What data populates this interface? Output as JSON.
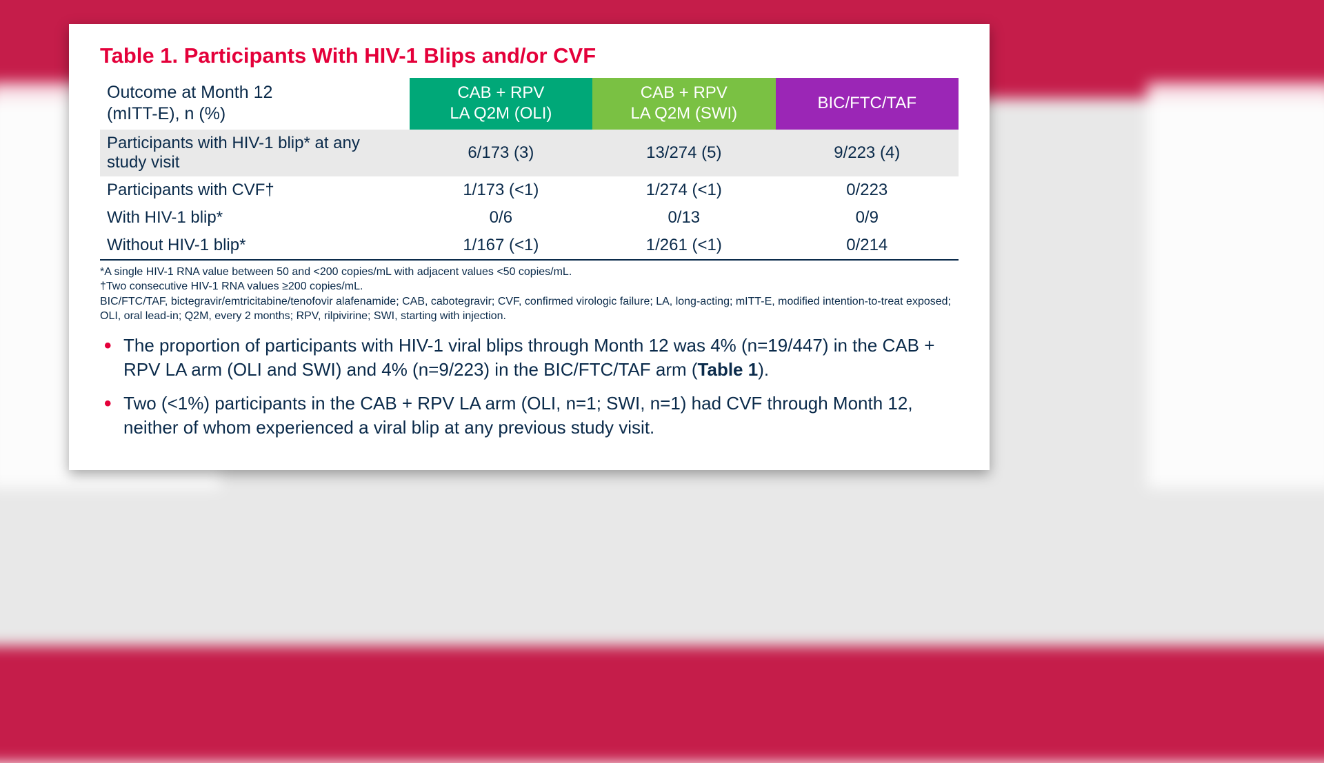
{
  "title": "Table 1. Participants With HIV-1 Blips and/or CVF",
  "colors": {
    "accent_red": "#e4003a",
    "text_navy": "#0a2a4a",
    "hdr1_bg": "#00a878",
    "hdr2_bg": "#7ac143",
    "hdr3_bg": "#9b26b6",
    "row_shade": "#e9e9e9",
    "card_bg": "#ffffff"
  },
  "table": {
    "outcome_header_l1": "Outcome at Month 12",
    "outcome_header_l2": "(mITT-E), n (%)",
    "arms": [
      {
        "l1": "CAB + RPV",
        "l2": "LA Q2M (OLI)",
        "bg": "#00a878"
      },
      {
        "l1": "CAB + RPV",
        "l2": "LA Q2M (SWI)",
        "bg": "#7ac143"
      },
      {
        "l1": "BIC/FTC/TAF",
        "l2": "",
        "bg": "#9b26b6"
      }
    ],
    "rows": [
      {
        "label": "Participants with HIV-1 blip* at any study visit",
        "indent": false,
        "shade": true,
        "cells": [
          "6/173 (3)",
          "13/274 (5)",
          "9/223 (4)"
        ]
      },
      {
        "label": "Participants with CVF†",
        "indent": false,
        "shade": false,
        "cells": [
          "1/173 (<1)",
          "1/274 (<1)",
          "0/223"
        ]
      },
      {
        "label": "With HIV-1 blip*",
        "indent": true,
        "shade": false,
        "cells": [
          "0/6",
          "0/13",
          "0/9"
        ]
      },
      {
        "label": "Without HIV-1 blip*",
        "indent": true,
        "shade": false,
        "cells": [
          "1/167 (<1)",
          "1/261 (<1)",
          "0/214"
        ]
      }
    ]
  },
  "footnotes": {
    "f1": "*A single HIV-1 RNA value between 50 and <200 copies/mL with adjacent values <50 copies/mL.",
    "f2": "†Two consecutive HIV-1 RNA values ≥200 copies/mL.",
    "f3": "BIC/FTC/TAF, bictegravir/emtricitabine/tenofovir alafenamide; CAB, cabotegravir; CVF, confirmed virologic failure; LA, long-acting; mITT-E, modified intention-to-treat exposed; OLI, oral lead-in; Q2M, every 2 months; RPV, rilpivirine; SWI, starting with injection."
  },
  "bullets": {
    "b1_a": "The proportion of participants with HIV-1 viral blips through Month 12 was 4% (n=19/447) in the CAB + RPV LA arm (OLI and SWI) and 4% (n=9/223) in the BIC/FTC/TAF arm (",
    "b1_bold": "Table 1",
    "b1_b": ").",
    "b2": "Two (<1%) participants in the CAB + RPV LA arm (OLI, n=1; SWI, n=1) had CVF through Month 12, neither of whom experienced a viral blip at any previous study visit."
  }
}
